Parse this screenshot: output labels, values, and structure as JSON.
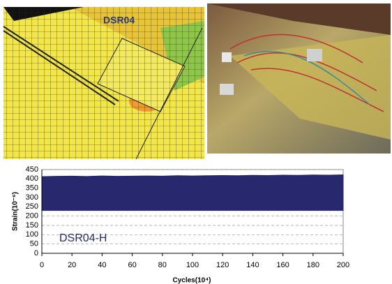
{
  "fe_label": "DSR04",
  "chart_data": {
    "type": "range_area",
    "annotation": "DSR04-H",
    "x_label": "Cycles(10⁴)",
    "y_label": "Strain(10⁻⁶)",
    "x": [
      0,
      10,
      20,
      30,
      40,
      50,
      60,
      70,
      80,
      90,
      100,
      110,
      120,
      130,
      140,
      150,
      160,
      170,
      180,
      190,
      200
    ],
    "high": [
      412,
      414,
      415,
      413,
      416,
      414,
      415,
      416,
      415,
      417,
      416,
      417,
      418,
      417,
      419,
      418,
      420,
      419,
      421,
      420,
      422
    ],
    "low": [
      230,
      230,
      230,
      230,
      230,
      230,
      230,
      230,
      230,
      230,
      230,
      230,
      230,
      230,
      230,
      230,
      230,
      230,
      230,
      230,
      230
    ],
    "color": "#27286e",
    "xlim": [
      0,
      200
    ],
    "xticks": [
      0,
      20,
      40,
      60,
      80,
      100,
      120,
      140,
      160,
      180,
      200
    ],
    "ylim": [
      0,
      450
    ],
    "yticks": [
      0,
      50,
      100,
      150,
      200,
      250,
      300,
      350,
      400,
      450
    ],
    "grid": true
  }
}
